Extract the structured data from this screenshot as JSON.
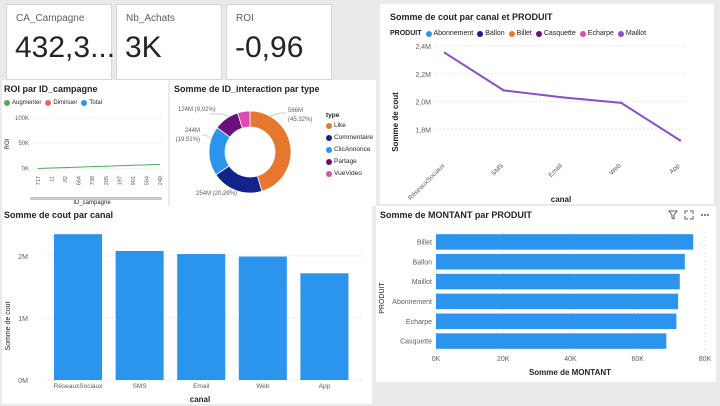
{
  "cards": [
    {
      "label": "CA_Campagne",
      "value": "432,3..."
    },
    {
      "label": "Nb_Achats",
      "value": "3K"
    },
    {
      "label": "ROI",
      "value": "-0,96"
    }
  ],
  "colors": {
    "bar": "#2b95ee",
    "line": "#8a4fc8",
    "like": "#e8772e",
    "commentaire": "#13238c",
    "clicannonce": "#2b95ee",
    "partage": "#6b0f7a",
    "vuevideo": "#e04ab2",
    "augmenter": "#4caf50",
    "diminuer": "#e8665a",
    "total": "#2b95ee"
  },
  "line_chart": {
    "title": "Somme de cout par canal et PRODUIT",
    "legend_title": "PRODUIT",
    "legend": [
      {
        "name": "Abonnement",
        "color": "#2b95ee"
      },
      {
        "name": "Ballon",
        "color": "#13238c"
      },
      {
        "name": "Billet",
        "color": "#e8772e"
      },
      {
        "name": "Casquette",
        "color": "#6b0f7a"
      },
      {
        "name": "Echarpe",
        "color": "#e04ab2"
      },
      {
        "name": "Maillot",
        "color": "#8a4fc8"
      }
    ],
    "ylabel": "Somme de cout",
    "xlabel": "canal",
    "ticks": [
      "2,4M",
      "2,2M",
      "2,0M",
      "1,8M"
    ]
  },
  "roi_chart": {
    "title": "ROI par ID_campagne",
    "legend": [
      {
        "name": "Augmenter",
        "color": "#4caf50"
      },
      {
        "name": "Diminuer",
        "color": "#e8665a"
      },
      {
        "name": "Total",
        "color": "#2b95ee"
      }
    ],
    "ylabel": "ROI",
    "xlabel": "ID_campagne",
    "ticks": [
      "100K",
      "50K",
      "0K"
    ]
  },
  "donut": {
    "title": "Somme de ID_interaction par type",
    "legend_title": "type",
    "legend": [
      {
        "name": "Like",
        "color": "#e8772e"
      },
      {
        "name": "Commentaire",
        "color": "#13238c"
      },
      {
        "name": "ClicAnnonce",
        "color": "#2b95ee"
      },
      {
        "name": "Partage",
        "color": "#6b0f7a"
      },
      {
        "name": "VueVideo",
        "color": "#e04ab2"
      }
    ],
    "labels": {
      "like_value": "566M",
      "like_pct": "(45,32%)",
      "comm": "254M (20,29%)",
      "clic_value": "244M",
      "clic_pct": "(19,51%)",
      "partage": "124M (9,92%)"
    }
  },
  "bar_chart": {
    "title": "Somme de cout par canal",
    "ylabel": "Somme de cout",
    "xlabel": "canal",
    "ticks": [
      "2M",
      "1M",
      "0M"
    ]
  },
  "hbar_chart": {
    "title": "Somme de MONTANT par PRODUIT",
    "ylabel": "PRODUIT",
    "xlabel": "Somme de MONTANT",
    "ticks": [
      "0K",
      "20K",
      "40K",
      "60K",
      "80K"
    ]
  },
  "chart_data": [
    {
      "type": "line",
      "title": "Somme de cout par canal et PRODUIT",
      "xlabel": "canal",
      "ylabel": "Somme de cout",
      "categories": [
        "RéseauxSociaux",
        "SMS",
        "Email",
        "Web",
        "App"
      ],
      "series": [
        {
          "name": "Maillot",
          "values": [
            2350000,
            2080000,
            2030000,
            1990000,
            1720000
          ]
        }
      ],
      "ylim": [
        1600000,
        2400000
      ]
    },
    {
      "type": "line",
      "title": "ROI par ID_campagne",
      "xlabel": "ID_campagne",
      "ylabel": "ROI",
      "categories": [
        "717",
        "11",
        "92",
        "664",
        "738",
        "205",
        "197",
        "901",
        "584",
        "240"
      ],
      "series": [
        {
          "name": "Total",
          "values": [
            0,
            900,
            1800,
            2700,
            3600,
            4500,
            5400,
            6300,
            7200,
            8100
          ]
        }
      ],
      "ylim": [
        -5000,
        100000
      ]
    },
    {
      "type": "pie",
      "title": "Somme de ID_interaction par type",
      "categories": [
        "Like",
        "Commentaire",
        "ClicAnnonce",
        "Partage",
        "VueVideo"
      ],
      "values": [
        566,
        254,
        244,
        124,
        61.5
      ],
      "unit": "M"
    },
    {
      "type": "bar",
      "title": "Somme de cout par canal",
      "xlabel": "canal",
      "ylabel": "Somme de cout",
      "categories": [
        "RéseauxSociaux",
        "SMS",
        "Email",
        "Web",
        "App"
      ],
      "values": [
        2350000,
        2080000,
        2030000,
        1990000,
        1720000
      ],
      "ylim": [
        0,
        2450000
      ]
    },
    {
      "type": "bar",
      "orientation": "horizontal",
      "title": "Somme de MONTANT par PRODUIT",
      "xlabel": "Somme de MONTANT",
      "ylabel": "PRODUIT",
      "categories": [
        "Billet",
        "Ballon",
        "Maillot",
        "Abonnement",
        "Echarpe",
        "Casquette"
      ],
      "values": [
        76500,
        74000,
        72500,
        72000,
        71500,
        68500
      ],
      "xlim": [
        0,
        80000
      ]
    }
  ]
}
